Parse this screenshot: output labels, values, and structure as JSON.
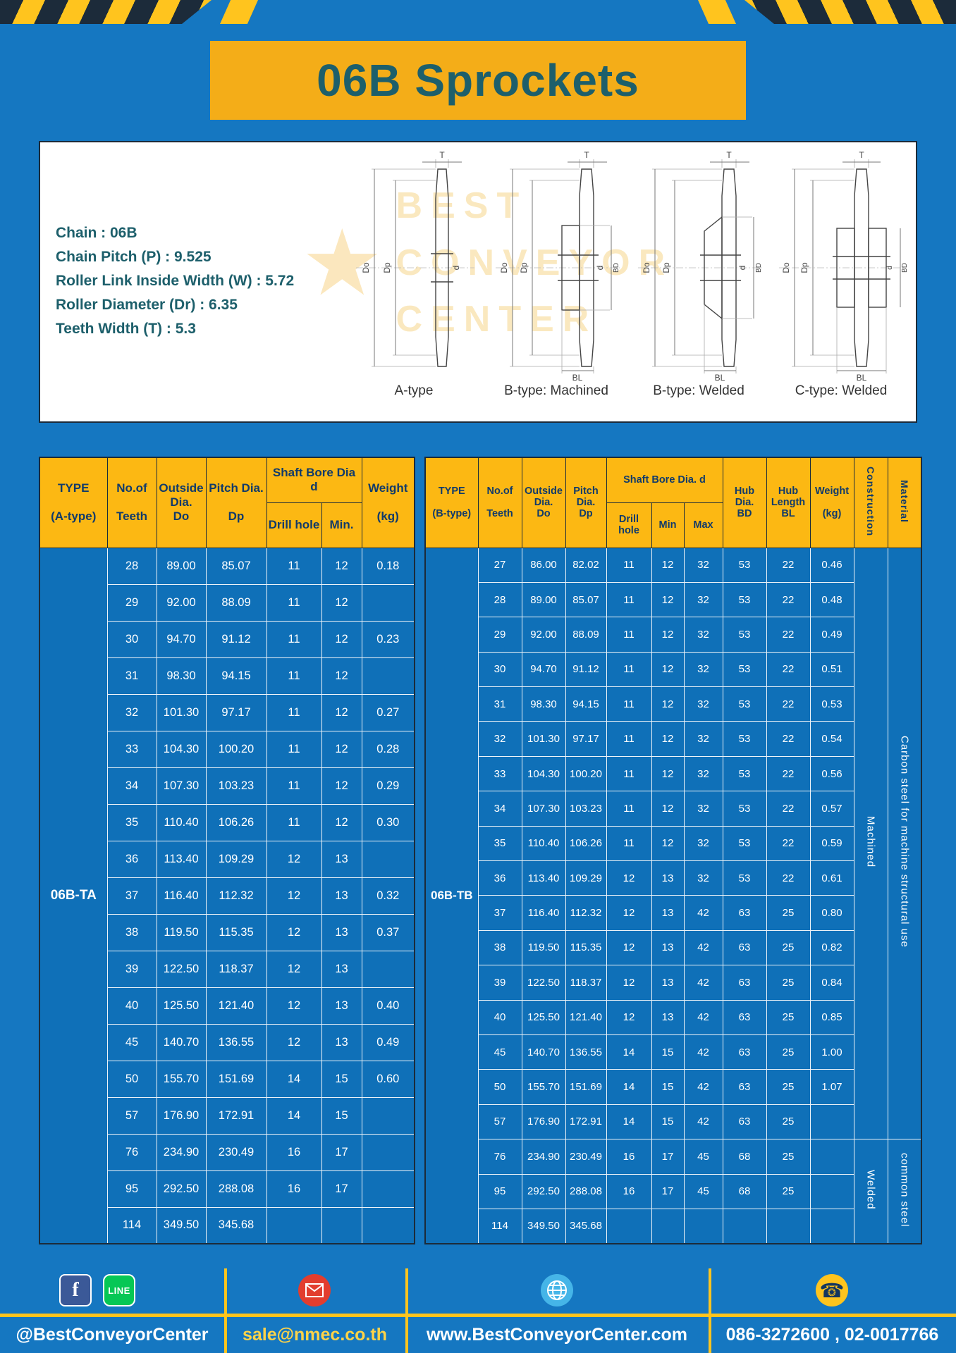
{
  "page": {
    "title": "06B Sprockets"
  },
  "colors": {
    "page_blue": "#1577c1",
    "cell_blue": "#0f70b8",
    "yellow": "#fcb813",
    "navy": "#1c2b3a",
    "header_text": "#113a6a",
    "teal_text": "#1d5f6b",
    "footer_email_text": "#ffd348"
  },
  "specs": {
    "lines": [
      "Chain : 06B",
      "Chain Pitch (P) : 9.525",
      "Roller Link Inside Width (W) : 5.72",
      "Roller Diameter (Dr) : 6.35",
      "Teeth Width (T) : 5.3"
    ]
  },
  "watermark": {
    "star": "★",
    "text": "BEST\nCONVEYOR\nCENTER"
  },
  "diagrams": {
    "items": [
      {
        "caption": "A-type",
        "dims": {
          "t": "T",
          "do": "Do",
          "dp": "Dp",
          "d": "d"
        }
      },
      {
        "caption": "B-type: Machined",
        "dims": {
          "t": "T",
          "do": "Do",
          "dp": "Dp",
          "d": "d",
          "bd": "BD",
          "bl": "BL"
        }
      },
      {
        "caption": "B-type: Welded",
        "dims": {
          "t": "T",
          "do": "Do",
          "dp": "Dp",
          "d": "d",
          "bd": "BD",
          "bl": "BL"
        }
      },
      {
        "caption": "C-type: Welded",
        "dims": {
          "t": "T",
          "do": "Do",
          "dp": "Dp",
          "d": "d",
          "bd": "BD",
          "bl": "BL"
        }
      }
    ]
  },
  "tableA": {
    "headers": {
      "type": "TYPE\n\n(A-type)",
      "teeth": "No.of\n\nTeeth",
      "outside": "Outside\nDia.\nDo",
      "pitch": "Pitch Dia.\n\nDp",
      "bore_group": "Shaft Bore Dia d",
      "drill": "Drill hole",
      "min": "Min.",
      "weight": "Weight\n\n(kg)"
    },
    "type_value": "06B-TA",
    "rows": [
      [
        "28",
        "89.00",
        "85.07",
        "11",
        "12",
        "0.18"
      ],
      [
        "29",
        "92.00",
        "88.09",
        "11",
        "12",
        ""
      ],
      [
        "30",
        "94.70",
        "91.12",
        "11",
        "12",
        "0.23"
      ],
      [
        "31",
        "98.30",
        "94.15",
        "11",
        "12",
        ""
      ],
      [
        "32",
        "101.30",
        "97.17",
        "11",
        "12",
        "0.27"
      ],
      [
        "33",
        "104.30",
        "100.20",
        "11",
        "12",
        "0.28"
      ],
      [
        "34",
        "107.30",
        "103.23",
        "11",
        "12",
        "0.29"
      ],
      [
        "35",
        "110.40",
        "106.26",
        "11",
        "12",
        "0.30"
      ],
      [
        "36",
        "113.40",
        "109.29",
        "12",
        "13",
        ""
      ],
      [
        "37",
        "116.40",
        "112.32",
        "12",
        "13",
        "0.32"
      ],
      [
        "38",
        "119.50",
        "115.35",
        "12",
        "13",
        "0.37"
      ],
      [
        "39",
        "122.50",
        "118.37",
        "12",
        "13",
        ""
      ],
      [
        "40",
        "125.50",
        "121.40",
        "12",
        "13",
        "0.40"
      ],
      [
        "45",
        "140.70",
        "136.55",
        "12",
        "13",
        "0.49"
      ],
      [
        "50",
        "155.70",
        "151.69",
        "14",
        "15",
        "0.60"
      ],
      [
        "57",
        "176.90",
        "172.91",
        "14",
        "15",
        ""
      ],
      [
        "76",
        "234.90",
        "230.49",
        "16",
        "17",
        ""
      ],
      [
        "95",
        "292.50",
        "288.08",
        "16",
        "17",
        ""
      ],
      [
        "114",
        "349.50",
        "345.68",
        "",
        "",
        ""
      ]
    ]
  },
  "tableB": {
    "headers": {
      "type": "TYPE\n\n(B-type)",
      "teeth": "No.of\n\nTeeth",
      "outside": "Outside\nDia.\nDo",
      "pitch": "Pitch\nDia.\nDp",
      "bore_group": "Shaft Bore Dia. d",
      "drill": "Drill hole",
      "min": "Min",
      "max": "Max",
      "hub_dia": "Hub\nDia.\nBD",
      "hub_len": "Hub\nLength\nBL",
      "weight": "Weight\n\n(kg)",
      "construction": "Construction",
      "material": "Material"
    },
    "type_value": "06B-TB",
    "rows": [
      [
        "27",
        "86.00",
        "82.02",
        "11",
        "12",
        "32",
        "53",
        "22",
        "0.46"
      ],
      [
        "28",
        "89.00",
        "85.07",
        "11",
        "12",
        "32",
        "53",
        "22",
        "0.48"
      ],
      [
        "29",
        "92.00",
        "88.09",
        "11",
        "12",
        "32",
        "53",
        "22",
        "0.49"
      ],
      [
        "30",
        "94.70",
        "91.12",
        "11",
        "12",
        "32",
        "53",
        "22",
        "0.51"
      ],
      [
        "31",
        "98.30",
        "94.15",
        "11",
        "12",
        "32",
        "53",
        "22",
        "0.53"
      ],
      [
        "32",
        "101.30",
        "97.17",
        "11",
        "12",
        "32",
        "53",
        "22",
        "0.54"
      ],
      [
        "33",
        "104.30",
        "100.20",
        "11",
        "12",
        "32",
        "53",
        "22",
        "0.56"
      ],
      [
        "34",
        "107.30",
        "103.23",
        "11",
        "12",
        "32",
        "53",
        "22",
        "0.57"
      ],
      [
        "35",
        "110.40",
        "106.26",
        "11",
        "12",
        "32",
        "53",
        "22",
        "0.59"
      ],
      [
        "36",
        "113.40",
        "109.29",
        "12",
        "13",
        "32",
        "53",
        "22",
        "0.61"
      ],
      [
        "37",
        "116.40",
        "112.32",
        "12",
        "13",
        "42",
        "63",
        "25",
        "0.80"
      ],
      [
        "38",
        "119.50",
        "115.35",
        "12",
        "13",
        "42",
        "63",
        "25",
        "0.82"
      ],
      [
        "39",
        "122.50",
        "118.37",
        "12",
        "13",
        "42",
        "63",
        "25",
        "0.84"
      ],
      [
        "40",
        "125.50",
        "121.40",
        "12",
        "13",
        "42",
        "63",
        "25",
        "0.85"
      ],
      [
        "45",
        "140.70",
        "136.55",
        "14",
        "15",
        "42",
        "63",
        "25",
        "1.00"
      ],
      [
        "50",
        "155.70",
        "151.69",
        "14",
        "15",
        "42",
        "63",
        "25",
        "1.07"
      ],
      [
        "57",
        "176.90",
        "172.91",
        "14",
        "15",
        "42",
        "63",
        "25",
        ""
      ],
      [
        "76",
        "234.90",
        "230.49",
        "16",
        "17",
        "45",
        "68",
        "25",
        ""
      ],
      [
        "95",
        "292.50",
        "288.08",
        "16",
        "17",
        "45",
        "68",
        "25",
        ""
      ],
      [
        "114",
        "349.50",
        "345.68",
        "",
        "",
        "",
        "",
        "",
        ""
      ]
    ],
    "construction_spans": [
      {
        "label": "Machined",
        "rows": 17
      },
      {
        "label": "Welded",
        "rows": 3
      }
    ],
    "material_spans": [
      {
        "label": "Carbon steel for machine structural use",
        "rows": 17
      },
      {
        "label": "common steel",
        "rows": 3
      }
    ]
  },
  "footer": {
    "sections": [
      {
        "text": "@BestConveyorCenter"
      },
      {
        "text": "sale@nmec.co.th"
      },
      {
        "text": "www.BestConveyorCenter.com"
      },
      {
        "text": "086-3272600 , 02-0017766"
      }
    ],
    "facebook_letter": "f",
    "line_label": "LINE",
    "phone_glyph": "☎"
  }
}
